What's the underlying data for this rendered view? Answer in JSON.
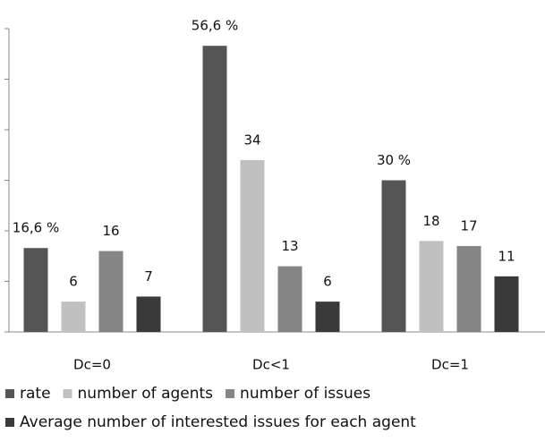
{
  "chart_data": {
    "type": "bar",
    "categories": [
      "Dc=0",
      "Dc<1",
      "Dc=1"
    ],
    "series": [
      {
        "name": "rate",
        "color": "#555555",
        "values": [
          16.6,
          56.6,
          30
        ],
        "value_labels": [
          "16,6 %",
          "56,6 %",
          "30 %"
        ]
      },
      {
        "name": "number of agents",
        "color": "#c0c0c0",
        "values": [
          6,
          34,
          18
        ]
      },
      {
        "name": "number of issues",
        "color": "#858585",
        "values": [
          16,
          13,
          17
        ]
      },
      {
        "name": "Average number of interested issues for each agent",
        "color": "#3a3a3a",
        "values": [
          7,
          6,
          11
        ]
      }
    ],
    "ylim": [
      0,
      60
    ],
    "yticks": [
      0,
      10,
      20,
      30,
      40,
      50,
      60
    ],
    "grid": false,
    "legend": "bottom"
  }
}
